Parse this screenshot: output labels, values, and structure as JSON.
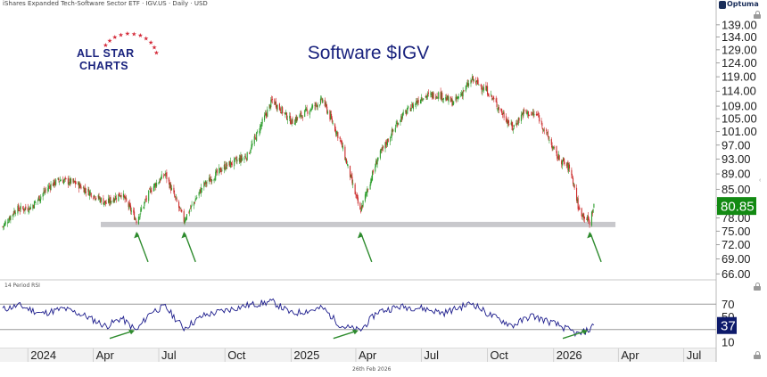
{
  "header": {
    "text": "iShares Expanded Tech-Software Sector ETF · IGV.US · Daily · USD",
    "provider": "Optuma"
  },
  "logo": {
    "line1": "ALL STAR",
    "line2": "CHARTS"
  },
  "footer": {
    "date": "26th Feb 2026"
  },
  "colors": {
    "up": "#2e9e2e",
    "down": "#cc2b2b",
    "rsi": "#1c1c8c",
    "support_band": "#c8c8cc",
    "arrow": "#2e8b2e",
    "last_price_bg": "#138a13",
    "rsi_badge_bg": "#0d1a6b",
    "title": "#1a237e"
  },
  "icons": {
    "lock": "lock-icon",
    "expand": "chevron-left-icon"
  },
  "chart_data": [
    {
      "type": "candlestick",
      "title": "Software $IGV",
      "timeframe": "Daily",
      "y_scale": "log",
      "ylim": [
        65,
        145
      ],
      "y_ticks": [
        "139.00",
        "134.00",
        "129.00",
        "124.00",
        "119.00",
        "114.00",
        "109.00",
        "105.00",
        "101.00",
        "97.00",
        "93.00",
        "89.00",
        "85.00",
        "81.00",
        "78.00",
        "75.00",
        "72.00",
        "69.00",
        "66.00"
      ],
      "x_ticks": [
        "2024",
        "Apr",
        "Jul",
        "Oct",
        "2025",
        "Apr",
        "Jul",
        "Oct",
        "2026",
        "Apr",
        "Jul"
      ],
      "xlim": [
        "2023-11-27",
        "2026-08-15"
      ],
      "last_price": "80.85",
      "support_level": 76.5,
      "support_range": [
        "2023-11-27",
        "2026-03-28"
      ],
      "arrows_at": [
        "2024-05-31",
        "2024-08-05",
        "2025-04-07",
        "2026-02-20"
      ],
      "close_path": [
        [
          "2023-11-27",
          76.0
        ],
        [
          "2023-12-15",
          80.0
        ],
        [
          "2024-01-05",
          80.5
        ],
        [
          "2024-02-01",
          86.0
        ],
        [
          "2024-02-15",
          87.5
        ],
        [
          "2024-03-08",
          86.5
        ],
        [
          "2024-04-19",
          81.5
        ],
        [
          "2024-05-10",
          84.0
        ],
        [
          "2024-05-31",
          77.5
        ],
        [
          "2024-06-20",
          85.0
        ],
        [
          "2024-07-10",
          89.0
        ],
        [
          "2024-08-05",
          77.5
        ],
        [
          "2024-09-01",
          86.0
        ],
        [
          "2024-10-01",
          91.0
        ],
        [
          "2024-11-01",
          94.0
        ],
        [
          "2024-12-06",
          111.0
        ],
        [
          "2025-01-02",
          104.0
        ],
        [
          "2025-02-14",
          111.0
        ],
        [
          "2025-03-11",
          98.0
        ],
        [
          "2025-04-07",
          79.5
        ],
        [
          "2025-05-01",
          93.0
        ],
        [
          "2025-06-01",
          105.0
        ],
        [
          "2025-07-01",
          112.0
        ],
        [
          "2025-07-25",
          113.0
        ],
        [
          "2025-08-15",
          110.0
        ],
        [
          "2025-09-10",
          118.0
        ],
        [
          "2025-10-01",
          114.0
        ],
        [
          "2025-11-05",
          102.0
        ],
        [
          "2025-11-20",
          107.0
        ],
        [
          "2025-12-10",
          106.0
        ],
        [
          "2026-01-05",
          94.0
        ],
        [
          "2026-01-25",
          90.0
        ],
        [
          "2026-02-05",
          80.0
        ],
        [
          "2026-02-20",
          77.0
        ],
        [
          "2026-02-26",
          80.85
        ]
      ]
    },
    {
      "type": "line",
      "title": "14 Period RSI",
      "ylim": [
        0,
        100
      ],
      "y_ticks": [
        "70",
        "50",
        "30",
        "10"
      ],
      "guide_levels": [
        70,
        30
      ],
      "last_value": "37",
      "arrows_at": [
        "2024-05-31",
        "2025-04-07",
        "2026-02-20"
      ],
      "rsi_path": [
        [
          "2023-11-27",
          62
        ],
        [
          "2023-12-20",
          68
        ],
        [
          "2024-01-20",
          55
        ],
        [
          "2024-02-20",
          63
        ],
        [
          "2024-03-20",
          52
        ],
        [
          "2024-04-19",
          35
        ],
        [
          "2024-05-10",
          48
        ],
        [
          "2024-05-31",
          28
        ],
        [
          "2024-06-20",
          58
        ],
        [
          "2024-07-10",
          66
        ],
        [
          "2024-08-05",
          32
        ],
        [
          "2024-09-01",
          52
        ],
        [
          "2024-10-01",
          60
        ],
        [
          "2024-11-01",
          68
        ],
        [
          "2024-12-06",
          74
        ],
        [
          "2025-01-02",
          55
        ],
        [
          "2025-02-14",
          64
        ],
        [
          "2025-03-11",
          36
        ],
        [
          "2025-04-07",
          28
        ],
        [
          "2025-05-01",
          58
        ],
        [
          "2025-06-01",
          66
        ],
        [
          "2025-07-01",
          64
        ],
        [
          "2025-08-01",
          56
        ],
        [
          "2025-09-10",
          72
        ],
        [
          "2025-10-01",
          55
        ],
        [
          "2025-11-05",
          36
        ],
        [
          "2025-12-01",
          52
        ],
        [
          "2026-01-05",
          38
        ],
        [
          "2026-02-05",
          22
        ],
        [
          "2026-02-20",
          30
        ],
        [
          "2026-02-26",
          37
        ]
      ]
    }
  ]
}
